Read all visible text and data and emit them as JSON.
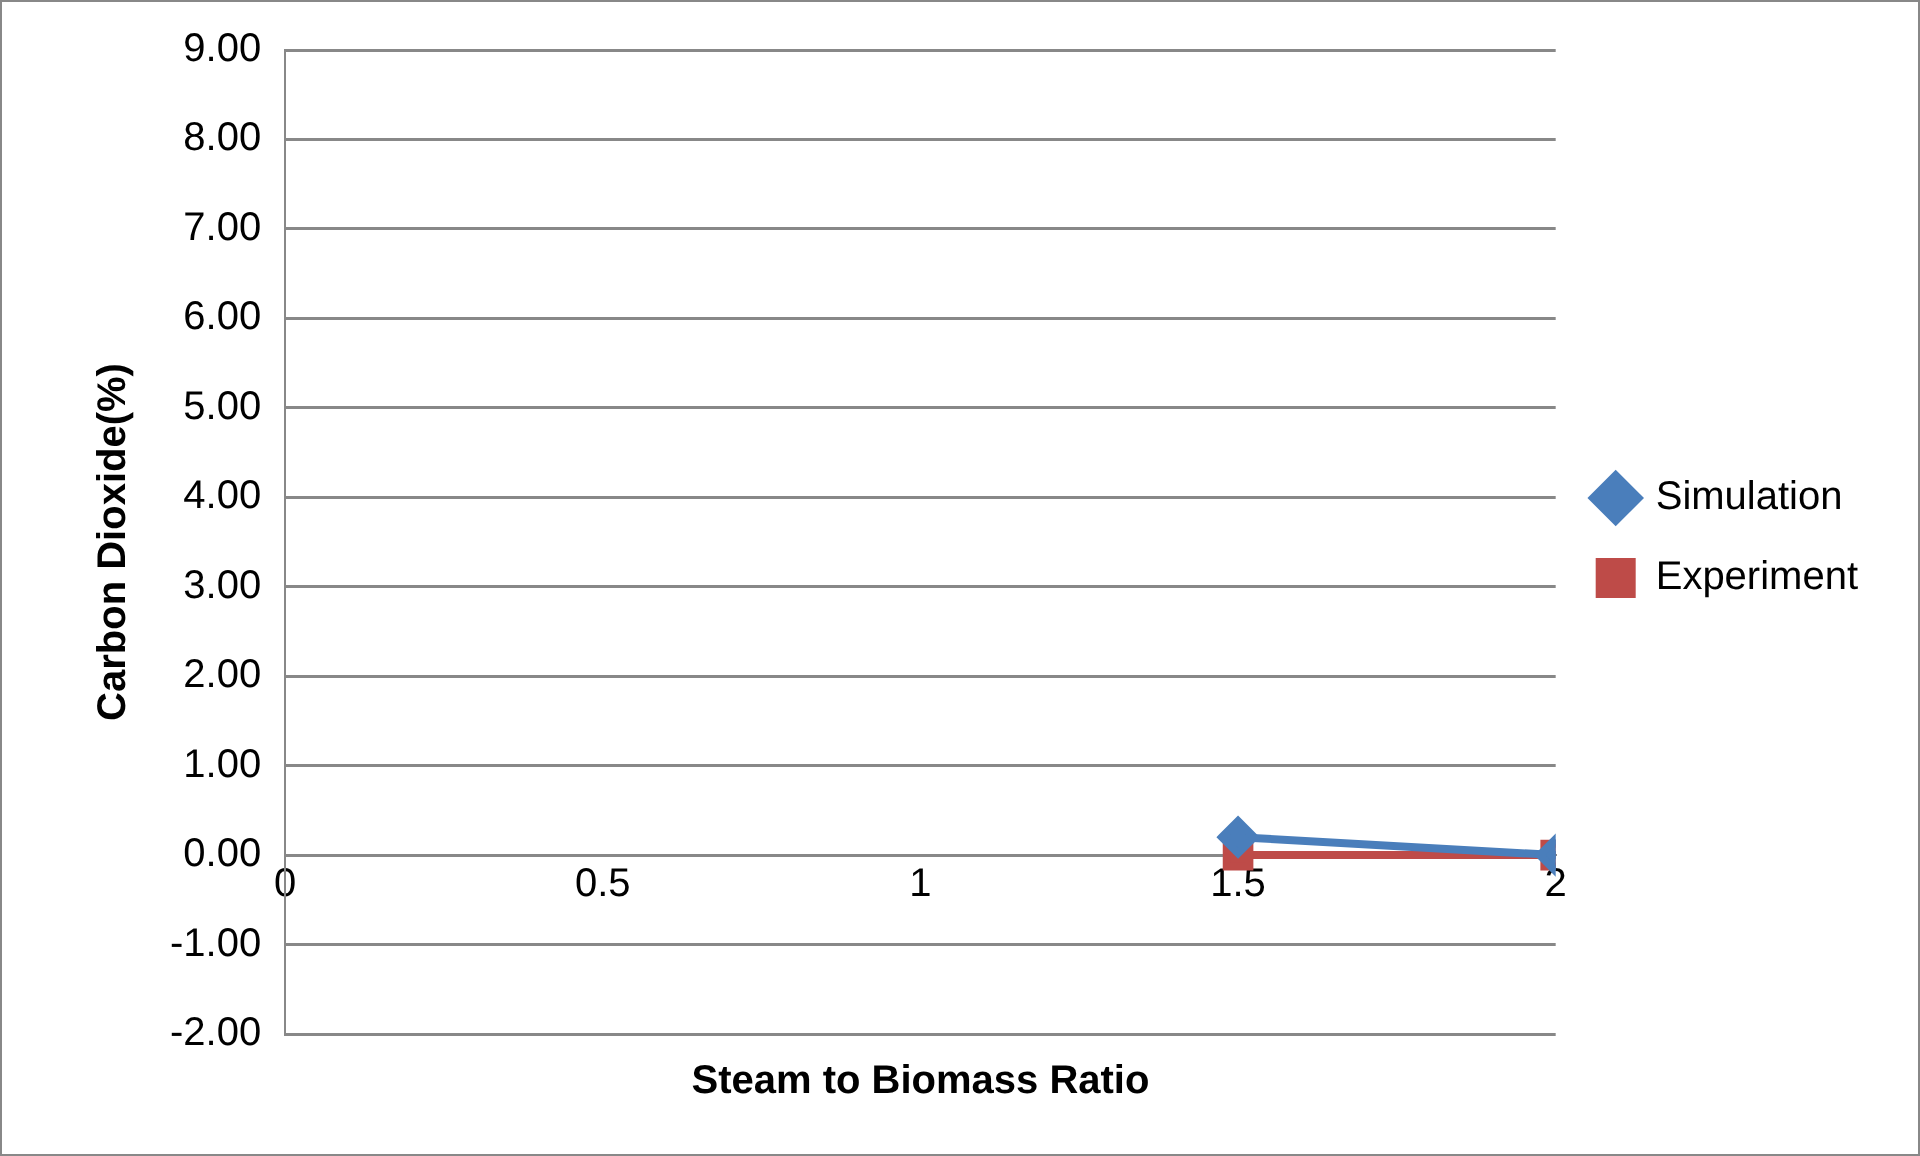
{
  "chart_data": {
    "type": "line",
    "xlabel": "Steam to Biomass Ratio",
    "ylabel": "Carbon Dioxide(%)",
    "x": [
      1.5,
      2
    ],
    "series": [
      {
        "name": "Simulation",
        "color": "#4a7ebb",
        "values": [
          0.2,
          0
        ],
        "marker": "diamond"
      },
      {
        "name": "Experiment",
        "color": "#be4b48",
        "values": [
          0,
          0
        ],
        "marker": "square"
      }
    ],
    "xlim": [
      0,
      2
    ],
    "xticks": [
      0,
      0.5,
      1,
      1.5,
      2
    ],
    "ylim": [
      -2,
      9
    ],
    "yticks": [
      {
        "value": -2,
        "label": "-2.00"
      },
      {
        "value": -1,
        "label": "-1.00"
      },
      {
        "value": 0,
        "label": "0.00"
      },
      {
        "value": 1,
        "label": "1.00"
      },
      {
        "value": 2,
        "label": "2.00"
      },
      {
        "value": 3,
        "label": "3.00"
      },
      {
        "value": 4,
        "label": "4.00"
      },
      {
        "value": 5,
        "label": "5.00"
      },
      {
        "value": 6,
        "label": "6.00"
      },
      {
        "value": 7,
        "label": "7.00"
      },
      {
        "value": 8,
        "label": "8.00"
      },
      {
        "value": 9,
        "label": "9.00"
      }
    ],
    "grid": "y",
    "legend": "right",
    "line_style": "solid"
  }
}
